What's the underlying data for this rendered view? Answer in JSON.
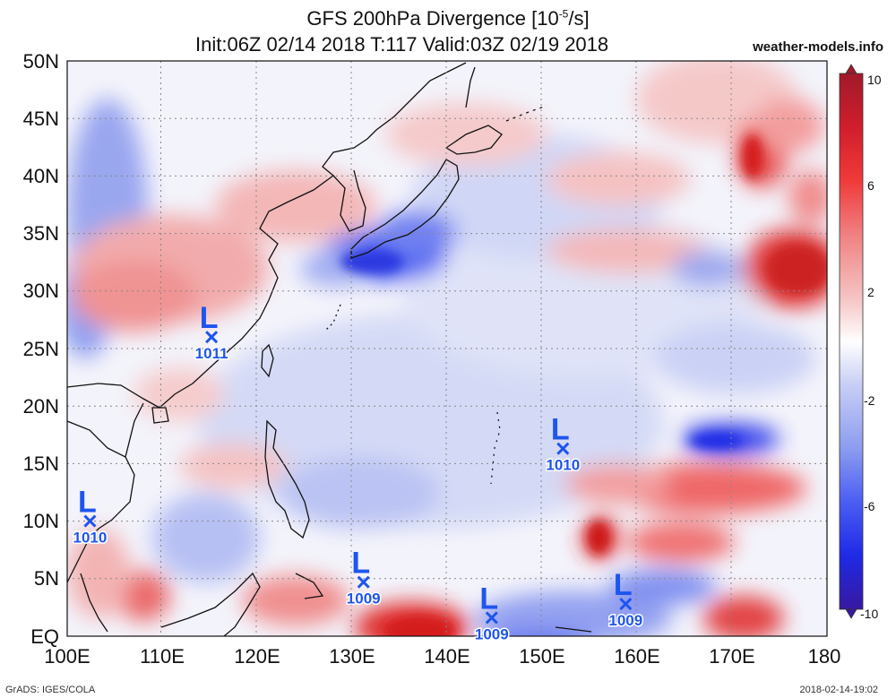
{
  "header": {
    "title_main": "GFS 200hPa Divergence [10",
    "title_exp": "-5",
    "title_end": "/s]",
    "init_line": "Init:06Z 02/14 2018 T:117 Valid:03Z 02/19 2018",
    "site": "weather-models.info"
  },
  "footer": {
    "left": "GrADS: IGES/COLA",
    "right": "2018-02-14-19:02"
  },
  "map": {
    "lat_labels": [
      "50N",
      "45N",
      "40N",
      "35N",
      "30N",
      "25N",
      "20N",
      "15N",
      "10N",
      "5N",
      "EQ"
    ],
    "lon_labels": [
      "100E",
      "110E",
      "120E",
      "130E",
      "140E",
      "150E",
      "160E",
      "170E",
      "180"
    ],
    "lows": [
      {
        "letter": "L",
        "value": "1011",
        "lon": 115.2,
        "lat": 26.0
      },
      {
        "letter": "L",
        "value": "1010",
        "lon": 102.4,
        "lat": 10.0
      },
      {
        "letter": "L",
        "value": "1010",
        "lon": 152.2,
        "lat": 16.3
      },
      {
        "letter": "L",
        "value": "1009",
        "lon": 131.2,
        "lat": 4.7
      },
      {
        "letter": "L",
        "value": "1009",
        "lon": 144.7,
        "lat": 1.6
      },
      {
        "letter": "L",
        "value": "1009",
        "lon": 158.8,
        "lat": 2.8
      }
    ]
  },
  "colorbar": {
    "labels": [
      "10",
      "6",
      "2",
      "-2",
      "-6",
      "-10"
    ],
    "colors": [
      "#a01a2a",
      "#d01e2a",
      "#f03a3a",
      "#f08080",
      "#f5c4c4",
      "#ffffff",
      "#c8cff5",
      "#8c9cf0",
      "#4a5ef2",
      "#1e2ae6",
      "#3818a0"
    ]
  }
}
